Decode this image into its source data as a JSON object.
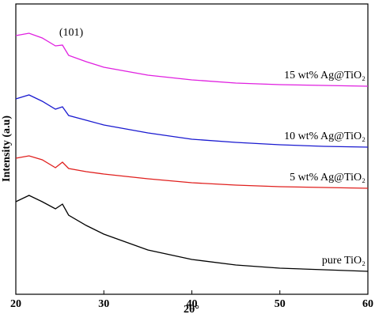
{
  "chart_data": {
    "type": "line",
    "xlabel": "2θ°",
    "ylabel": "Intensity (a.u)",
    "annotation": "(101)",
    "x": [
      20,
      21.5,
      23,
      24.5,
      25.3,
      26,
      28,
      30,
      35,
      40,
      45,
      50,
      55,
      60
    ],
    "xlim": [
      20,
      60
    ],
    "xticks": [
      20,
      30,
      40,
      50,
      60
    ],
    "ylim": [
      0,
      367
    ],
    "series": [
      {
        "name": "pure TiO₂",
        "color": "#000000",
        "values": [
          117,
          125,
          117,
          108,
          114,
          100,
          87,
          76,
          56,
          44,
          37,
          33,
          31,
          29
        ]
      },
      {
        "name": "5 wt% Ag@TiO₂",
        "color": "#e0201e",
        "values": [
          172,
          175,
          170,
          160,
          167,
          159,
          155,
          152,
          146,
          141,
          138,
          136,
          135,
          134
        ]
      },
      {
        "name": "10 wt% Ag@TiO₂",
        "color": "#1a1ad0",
        "values": [
          247,
          252,
          244,
          234,
          237,
          226,
          220,
          214,
          204,
          196,
          192,
          189,
          187,
          186
        ]
      },
      {
        "name": "15 wt% Ag@TiO₂",
        "color": "#e020e0",
        "values": [
          327,
          330,
          324,
          314,
          315,
          302,
          294,
          287,
          277,
          271,
          267,
          265,
          264,
          263
        ]
      }
    ]
  }
}
